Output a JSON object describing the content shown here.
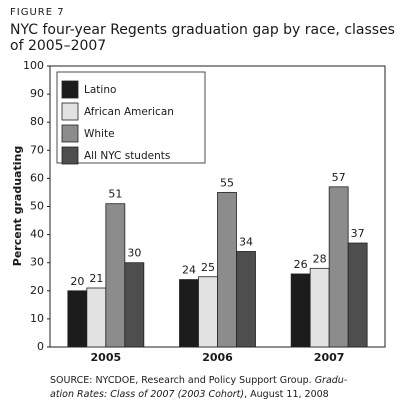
{
  "figure_label": "FIGURE 7",
  "chart_data": {
    "type": "bar",
    "title": [
      "NYC four-year Regents graduation gap by race, classes",
      "of 2005–2007"
    ],
    "y_label": "Percent graduating",
    "categories": [
      "2005",
      "2006",
      "2007"
    ],
    "series": [
      {
        "name": "Latino",
        "color": "#1c1c1c",
        "values": [
          20,
          24,
          26
        ]
      },
      {
        "name": "African American",
        "color": "#e2e2e2",
        "values": [
          21,
          25,
          28
        ]
      },
      {
        "name": "White",
        "color": "#8c8c8c",
        "values": [
          51,
          55,
          57
        ]
      },
      {
        "name": "All NYC students",
        "color": "#4e4e4e",
        "values": [
          30,
          34,
          37
        ]
      }
    ],
    "ylim": [
      0,
      100
    ],
    "yticks": [
      0,
      10,
      20,
      30,
      40,
      50,
      60,
      70,
      80,
      90,
      100
    ],
    "legend": "upper-left",
    "grid": false
  },
  "source": [
    [
      "SOURCE: NYCDOE, Research and Policy Support Group. ",
      "Gradu-"
    ],
    [
      "ation Rates: Class of 2007 (2003 Cohort)",
      ", August 11, 2008"
    ]
  ]
}
